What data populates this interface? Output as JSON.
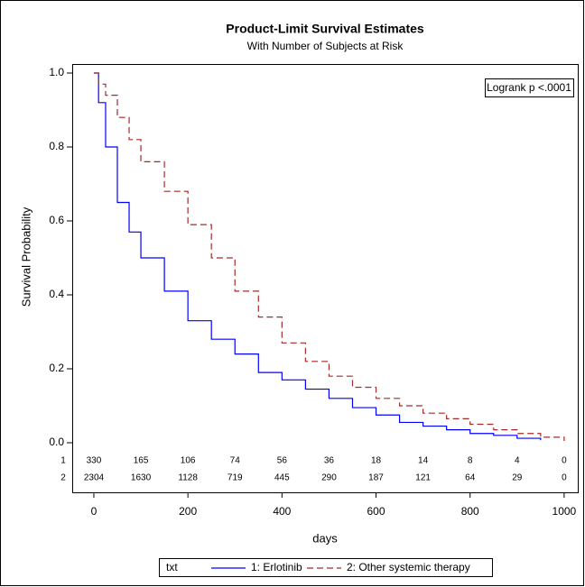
{
  "chart_data": {
    "type": "line",
    "title": "Product-Limit Survival Estimates",
    "subtitle": "With Number of Subjects at Risk",
    "x_label": "days",
    "y_label": "Survival Probability",
    "annotation": "Logrank p <.0001",
    "legend_title": "txt",
    "step": true,
    "x": [
      0,
      10,
      25,
      50,
      75,
      100,
      150,
      200,
      250,
      300,
      350,
      400,
      450,
      500,
      550,
      600,
      650,
      700,
      750,
      800,
      850,
      900,
      950,
      1000
    ],
    "series": [
      {
        "name": "1: Erlotinib",
        "color": "#0000ff",
        "dash": false,
        "values": [
          1.0,
          0.92,
          0.8,
          0.65,
          0.57,
          0.5,
          0.41,
          0.33,
          0.28,
          0.24,
          0.19,
          0.17,
          0.145,
          0.12,
          0.095,
          0.075,
          0.055,
          0.045,
          0.035,
          0.025,
          0.02,
          0.012,
          0.007,
          null
        ]
      },
      {
        "name": "2: Other systemic therapy",
        "color": "#a52a2a",
        "dash": true,
        "values": [
          1.0,
          0.97,
          0.94,
          0.88,
          0.82,
          0.76,
          0.68,
          0.59,
          0.5,
          0.41,
          0.34,
          0.27,
          0.22,
          0.18,
          0.15,
          0.12,
          0.1,
          0.08,
          0.065,
          0.05,
          0.035,
          0.025,
          0.015,
          0.005
        ]
      }
    ],
    "xlim": [
      -46,
      1029
    ],
    "ylim": [
      0,
      1
    ],
    "xticks": [
      0,
      200,
      400,
      600,
      800,
      1000
    ],
    "yticks": [
      {
        "value": 0,
        "label": "0.0"
      },
      {
        "value": 0.2,
        "label": "0.2"
      },
      {
        "value": 0.4,
        "label": "0.4"
      },
      {
        "value": 0.6,
        "label": "0.6"
      },
      {
        "value": 0.8,
        "label": "0.8"
      },
      {
        "value": 1,
        "label": "1.0"
      }
    ],
    "at_risk": {
      "x": [
        0,
        100,
        200,
        300,
        400,
        500,
        600,
        700,
        800,
        900,
        1000
      ],
      "rows": [
        {
          "label": "1",
          "values": [
            330,
            165,
            106,
            74,
            56,
            36,
            18,
            14,
            8,
            4,
            0
          ]
        },
        {
          "label": "2",
          "values": [
            2304,
            1630,
            1128,
            719,
            445,
            290,
            187,
            121,
            64,
            29,
            0
          ]
        }
      ]
    }
  }
}
